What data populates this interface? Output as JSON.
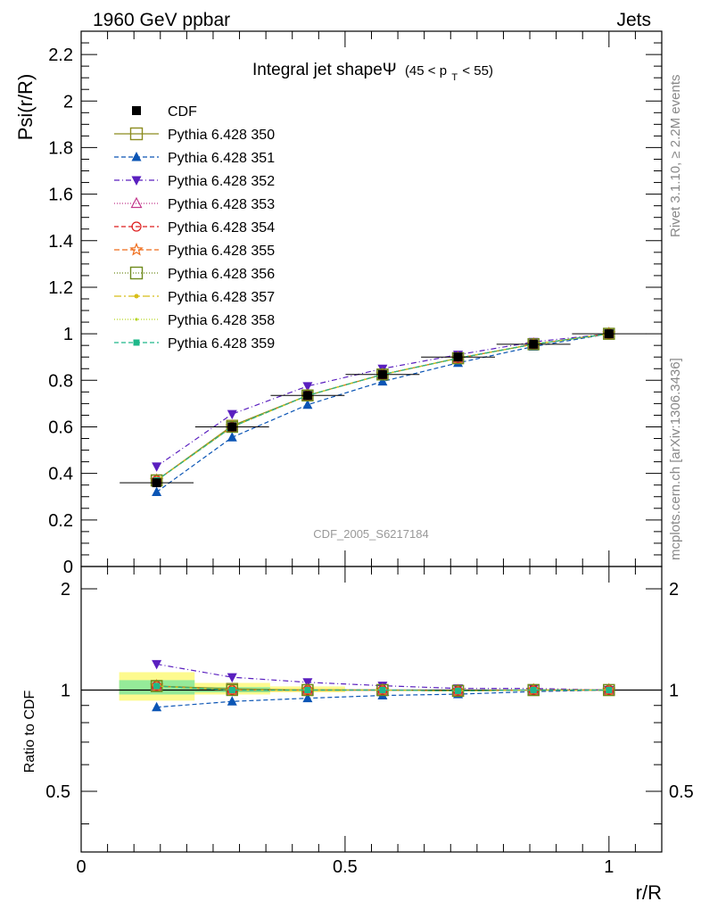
{
  "header": {
    "left": "1960 GeV ppbar",
    "right": "Jets"
  },
  "side_text": {
    "rivet": "Rivet 3.1.10, ≥ 2.2M events",
    "mcplots": "mcplots.cern.ch [arXiv:1306.3436]"
  },
  "chart_data": {
    "type": "line",
    "title": "Integral jet shapeΨ",
    "title_suffix": "(45 < p",
    "title_sub": "T",
    "title_end": " < 55)",
    "watermark": "CDF_2005_S6217184",
    "xlabel": "r/R",
    "ylabel": "Psi(r/R)",
    "ratio_ylabel": "Ratio to CDF",
    "xlim": [
      0,
      1.1
    ],
    "ylim": [
      0,
      2.3
    ],
    "ratio_ylim": [
      0.33,
      2.33
    ],
    "x_ticks": [
      0,
      0.5,
      1
    ],
    "x_tick_labels": [
      "0",
      "0.5",
      "1"
    ],
    "y_ticks": [
      0,
      0.2,
      0.4,
      0.6,
      0.8,
      1,
      1.2,
      1.4,
      1.6,
      1.8,
      2,
      2.2
    ],
    "y_tick_labels": [
      "0",
      "0.2",
      "0.4",
      "0.6",
      "0.8",
      "1",
      "1.2",
      "1.4",
      "1.6",
      "1.8",
      "2",
      "2.2"
    ],
    "ratio_ticks": [
      0.5,
      1,
      2
    ],
    "ratio_tick_labels": [
      "0.5",
      "1",
      "2"
    ],
    "x": [
      0.143,
      0.286,
      0.429,
      0.571,
      0.714,
      0.857,
      1.0
    ],
    "data": {
      "name": "CDF",
      "values": [
        0.36,
        0.6,
        0.735,
        0.825,
        0.9,
        0.955,
        1.0
      ],
      "x_err": [
        0.07,
        0.07,
        0.07,
        0.07,
        0.07,
        0.07,
        0.07
      ]
    },
    "band_yellow": [
      {
        "x0": 0.072,
        "x1": 0.215,
        "lo": 0.93,
        "hi": 1.13
      },
      {
        "x0": 0.215,
        "x1": 0.358,
        "lo": 0.97,
        "hi": 1.05
      },
      {
        "x0": 0.358,
        "x1": 0.5,
        "lo": 0.985,
        "hi": 1.025
      }
    ],
    "band_green": [
      {
        "x0": 0.072,
        "x1": 0.215,
        "lo": 0.97,
        "hi": 1.07
      },
      {
        "x0": 0.215,
        "x1": 0.358,
        "lo": 0.985,
        "hi": 1.02
      }
    ],
    "series": [
      {
        "name": "Pythia 6.428 350",
        "color": "#8c8c1f",
        "dash": "",
        "marker": "square-open",
        "values": [
          0.37,
          0.605,
          0.735,
          0.825,
          0.895,
          0.955,
          1.0
        ]
      },
      {
        "name": "Pythia 6.428 351",
        "color": "#0b55b5",
        "dash": "5,3",
        "marker": "triangle-up",
        "values": [
          0.32,
          0.555,
          0.695,
          0.795,
          0.875,
          0.945,
          1.0
        ]
      },
      {
        "name": "Pythia 6.428 352",
        "color": "#5a1fbf",
        "dash": "6,3,1,3",
        "marker": "triangle-down",
        "values": [
          0.43,
          0.655,
          0.775,
          0.85,
          0.91,
          0.965,
          1.0
        ]
      },
      {
        "name": "Pythia 6.428 353",
        "color": "#c2378c",
        "dash": "1,2",
        "marker": "triangle-open",
        "values": [
          0.37,
          0.6,
          0.735,
          0.825,
          0.895,
          0.955,
          1.0
        ]
      },
      {
        "name": "Pythia 6.428 354",
        "color": "#dd1c1c",
        "dash": "5,3",
        "marker": "circle-open",
        "values": [
          0.37,
          0.6,
          0.735,
          0.825,
          0.895,
          0.955,
          1.0
        ]
      },
      {
        "name": "Pythia 6.428 355",
        "color": "#ef6c1a",
        "dash": "6,3",
        "marker": "star-open",
        "values": [
          0.37,
          0.6,
          0.735,
          0.825,
          0.895,
          0.955,
          1.0
        ]
      },
      {
        "name": "Pythia 6.428 356",
        "color": "#6e8a1c",
        "dash": "1,2",
        "marker": "square-open",
        "values": [
          0.37,
          0.6,
          0.735,
          0.825,
          0.895,
          0.955,
          1.0
        ]
      },
      {
        "name": "Pythia 6.428 357",
        "color": "#d8be18",
        "dash": "8,3,2,3",
        "marker": "dot",
        "values": [
          0.37,
          0.6,
          0.735,
          0.825,
          0.895,
          0.955,
          1.0
        ]
      },
      {
        "name": "Pythia 6.428 358",
        "color": "#b6d625",
        "dash": "1,2",
        "marker": "dot-small",
        "values": [
          0.37,
          0.6,
          0.735,
          0.825,
          0.895,
          0.955,
          1.0
        ]
      },
      {
        "name": "Pythia 6.428 359",
        "color": "#1fb88a",
        "dash": "5,3",
        "marker": "square-filled",
        "values": [
          0.37,
          0.6,
          0.735,
          0.825,
          0.895,
          0.955,
          1.0
        ]
      }
    ]
  }
}
